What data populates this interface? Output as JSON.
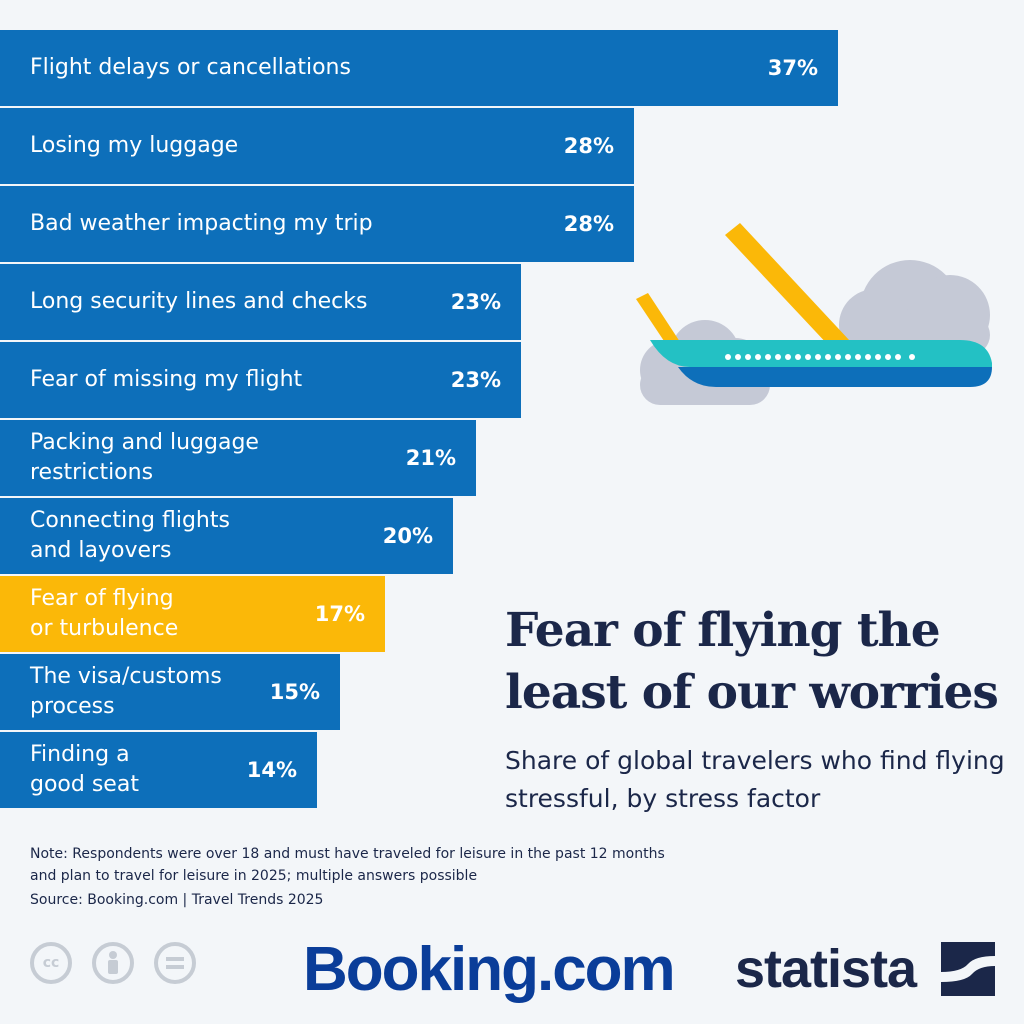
{
  "chart_data": {
    "type": "bar",
    "orientation": "horizontal",
    "title": "Fear of flying the least of our worries",
    "subtitle": "Share of global travelers who find flying stressful, by stress factor",
    "categories": [
      "Flight delays or cancellations",
      "Losing my luggage",
      "Bad weather impacting my trip",
      "Long security lines and checks",
      "Fear of missing my flight",
      "Packing and luggage restrictions",
      "Connecting flights and layovers",
      "Fear of flying or turbulence",
      "The visa/customs process",
      "Finding a good seat"
    ],
    "values": [
      37,
      28,
      28,
      23,
      23,
      21,
      20,
      17,
      15,
      14
    ],
    "unit": "%",
    "highlighted_category": "Fear of flying or turbulence",
    "xlim": [
      0,
      45
    ],
    "grid": false,
    "colors": {
      "bar": "#0d6fba",
      "highlight": "#fbb808"
    },
    "bars": [
      {
        "label": "Flight delays or cancellations",
        "value_label": "37%"
      },
      {
        "label": "Losing my luggage",
        "value_label": "28%"
      },
      {
        "label": "Bad weather impacting my trip",
        "value_label": "28%"
      },
      {
        "label": "Long security lines and checks",
        "value_label": "23%"
      },
      {
        "label": "Fear of missing my flight",
        "value_label": "23%"
      },
      {
        "label": "Packing and luggage\nrestrictions",
        "value_label": "21%"
      },
      {
        "label": "Connecting flights\nand layovers",
        "value_label": "20%"
      },
      {
        "label": "Fear of flying\nor turbulence",
        "value_label": "17%"
      },
      {
        "label": "The visa/customs\nprocess",
        "value_label": "15%"
      },
      {
        "label": "Finding a\ngood seat",
        "value_label": "14%"
      }
    ]
  },
  "note": "Note: Respondents were over 18 and must have traveled for leisure in the past 12 months and plan to travel for leisure in 2025; multiple answers possible",
  "source": "Source: Booking.com | Travel Trends 2025",
  "logos": {
    "booking": "Booking.com",
    "statista": "statista"
  },
  "license_icons": [
    "cc-icon",
    "attribution-icon",
    "no-derivatives-icon"
  ],
  "illustration": "airplane-icon"
}
